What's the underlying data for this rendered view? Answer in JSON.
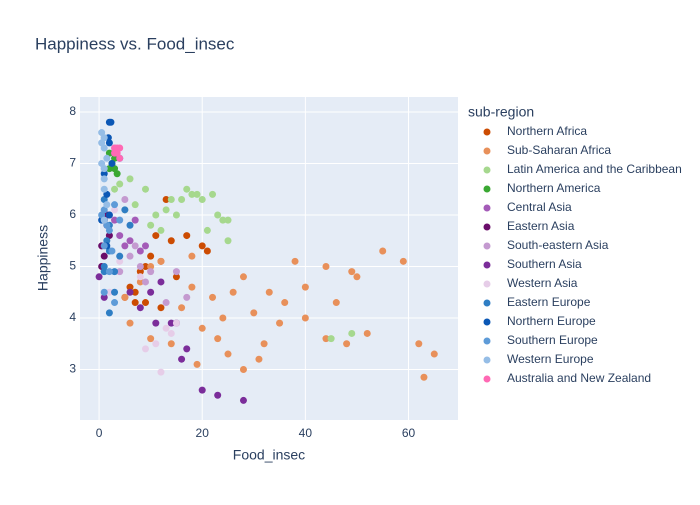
{
  "chart_data": {
    "type": "scatter",
    "title": "Happiness vs. Food_insec",
    "x_label": "Food_insec",
    "y_label": "Happiness",
    "legend_title": "sub-region",
    "xlim": [
      -3.7,
      69.6
    ],
    "ylim": [
      2.02,
      8.29
    ],
    "xticks": [
      0,
      20,
      40,
      60
    ],
    "yticks": [
      3,
      4,
      5,
      6,
      7,
      8
    ],
    "grid": true,
    "legend": "right",
    "series": [
      {
        "name": "Northern Africa",
        "color": "#cc4c02",
        "x": [
          5,
          6,
          7,
          8,
          9,
          10,
          11,
          12,
          13,
          14,
          17,
          20,
          21,
          12,
          9,
          7,
          15
        ],
        "values": [
          4.4,
          4.6,
          4.5,
          4.9,
          4.3,
          5.2,
          5.6,
          5.1,
          6.3,
          5.5,
          5.6,
          5.4,
          5.3,
          4.2,
          5.0,
          4.3,
          4.8
        ]
      },
      {
        "name": "Sub-Saharan Africa",
        "color": "#e8905a",
        "x": [
          5,
          8,
          10,
          12,
          14,
          16,
          18,
          20,
          22,
          24,
          25,
          26,
          28,
          30,
          32,
          33,
          36,
          38,
          40,
          40,
          44,
          46,
          48,
          49,
          50,
          52,
          55,
          59,
          62,
          63,
          65,
          28,
          31,
          6,
          19,
          23,
          35,
          44,
          18,
          10
        ],
        "values": [
          4.4,
          4.7,
          3.6,
          5.1,
          3.5,
          4.2,
          4.6,
          3.8,
          4.4,
          4.0,
          3.3,
          4.5,
          4.8,
          4.1,
          3.5,
          4.5,
          4.3,
          5.1,
          4.6,
          4.0,
          3.6,
          4.3,
          3.5,
          4.9,
          4.8,
          3.7,
          5.3,
          5.1,
          3.5,
          2.85,
          3.3,
          3.0,
          3.2,
          3.9,
          3.1,
          3.6,
          3.9,
          5.0,
          5.2,
          5.0
        ]
      },
      {
        "name": "Latin America and the Caribbean",
        "color": "#a6d88e",
        "x": [
          3,
          4,
          6,
          9,
          11,
          13,
          14,
          15,
          16,
          17,
          18,
          19,
          20,
          22,
          23,
          24,
          25,
          21,
          25,
          45,
          49,
          7,
          5,
          10,
          12
        ],
        "values": [
          6.5,
          6.6,
          6.7,
          6.5,
          6.0,
          6.1,
          6.3,
          6.0,
          6.3,
          6.5,
          6.4,
          6.4,
          6.3,
          6.4,
          6.0,
          5.9,
          5.9,
          5.7,
          5.5,
          3.6,
          3.7,
          6.2,
          6.1,
          5.8,
          5.7
        ]
      },
      {
        "name": "Northern America",
        "color": "#3aa832",
        "x": [
          2,
          2.5,
          3,
          3.5,
          2,
          3
        ],
        "values": [
          6.9,
          7.0,
          7.1,
          6.8,
          7.2,
          6.9
        ]
      },
      {
        "name": "Central Asia",
        "color": "#a45bb8",
        "x": [
          3,
          4,
          5,
          6,
          7,
          8,
          2,
          9
        ],
        "values": [
          5.9,
          5.6,
          5.4,
          5.5,
          5.9,
          5.3,
          6.0,
          5.4
        ]
      },
      {
        "name": "Eastern Asia",
        "color": "#6a0d6a",
        "x": [
          0.5,
          1,
          1.5,
          2,
          1,
          0.5,
          1.5
        ],
        "values": [
          5.0,
          5.9,
          6.0,
          5.6,
          5.2,
          5.4,
          5.8
        ]
      },
      {
        "name": "South-eastern Asia",
        "color": "#c49ad0",
        "x": [
          4,
          6,
          8,
          9,
          10,
          13,
          15,
          17,
          7,
          5
        ],
        "values": [
          4.9,
          5.2,
          5.0,
          4.7,
          4.9,
          4.3,
          4.9,
          4.4,
          5.4,
          6.3
        ]
      },
      {
        "name": "Southern Asia",
        "color": "#7b2d9a",
        "x": [
          1,
          6,
          8,
          10,
          12,
          14,
          15,
          16,
          17,
          20,
          23,
          28,
          11,
          0
        ],
        "values": [
          4.4,
          4.5,
          4.2,
          4.5,
          4.7,
          3.9,
          3.9,
          3.2,
          3.4,
          2.6,
          2.5,
          2.4,
          3.9,
          4.8
        ]
      },
      {
        "name": "Western Asia",
        "color": "#e6cde8",
        "x": [
          2,
          4,
          6,
          9,
          11,
          12,
          13,
          14,
          15,
          3,
          8
        ],
        "values": [
          4.5,
          5.1,
          5.8,
          3.4,
          3.5,
          2.95,
          3.8,
          3.7,
          3.9,
          6.1,
          4.8
        ]
      },
      {
        "name": "Eastern Europe",
        "color": "#2f7ec4",
        "x": [
          1,
          1.5,
          2,
          2,
          3,
          4,
          5,
          6,
          1,
          2,
          3,
          1
        ],
        "values": [
          5.0,
          5.5,
          5.8,
          4.1,
          4.9,
          5.2,
          6.1,
          5.8,
          6.3,
          5.3,
          4.5,
          4.9
        ]
      },
      {
        "name": "Northern Europe",
        "color": "#0b57b5",
        "x": [
          2,
          2.3,
          2,
          1.8,
          2.5,
          3,
          1,
          1.5,
          2,
          1,
          0.5,
          4,
          1.5
        ],
        "values": [
          7.8,
          7.8,
          7.4,
          7.5,
          7.0,
          7.2,
          6.8,
          6.4,
          6.0,
          5.9,
          5.9,
          7.1,
          5.4
        ]
      },
      {
        "name": "Southern Europe",
        "color": "#5e9bd8",
        "x": [
          1,
          1.5,
          2,
          3,
          1,
          2,
          4,
          0.5,
          2.5,
          1,
          3
        ],
        "values": [
          6.1,
          5.8,
          5.7,
          6.2,
          5.4,
          4.9,
          5.9,
          6.0,
          5.3,
          4.5,
          4.3
        ]
      },
      {
        "name": "Western Europe",
        "color": "#95bde6",
        "x": [
          0.5,
          1,
          1,
          1.5,
          0.5,
          1,
          1,
          1,
          0.5,
          1.5,
          1,
          3
        ],
        "values": [
          7.6,
          7.5,
          7.3,
          7.1,
          7.0,
          6.7,
          6.5,
          6.9,
          7.4,
          6.2,
          5.9,
          7.3
        ]
      },
      {
        "name": "Australia and New Zealand",
        "color": "#ff69b4",
        "x": [
          3,
          3.5,
          4,
          3.5,
          4,
          3
        ],
        "values": [
          7.3,
          7.3,
          7.3,
          7.2,
          7.1,
          7.2
        ]
      }
    ]
  }
}
